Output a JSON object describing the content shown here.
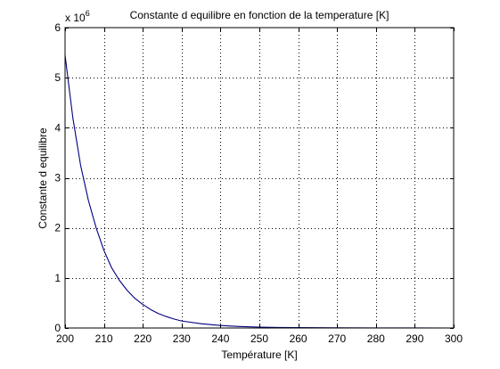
{
  "chart_data": {
    "type": "line",
    "title": "Constante d equilibre en fonction de la temperature [K]",
    "xlabel": "Température [K]",
    "ylabel": "Constante d equilibre",
    "y_multiplier_base": "x 10",
    "y_multiplier_exponent": "6",
    "xlim": [
      200,
      300
    ],
    "ylim": [
      0,
      6
    ],
    "x_ticks": [
      200,
      210,
      220,
      230,
      240,
      250,
      260,
      270,
      280,
      290,
      300
    ],
    "y_ticks": [
      0,
      1,
      2,
      3,
      4,
      5,
      6
    ],
    "grid": true,
    "line_color": "#00007f",
    "series": [
      {
        "x": [
          200,
          202,
          204,
          206,
          208,
          210,
          212,
          214,
          216,
          218,
          220,
          222,
          224,
          226,
          228,
          230,
          235,
          240,
          245,
          250,
          255,
          260,
          270,
          280,
          290,
          300
        ],
        "y": [
          5.45,
          4.2,
          3.25,
          2.55,
          2.0,
          1.55,
          1.2,
          0.95,
          0.75,
          0.59,
          0.47,
          0.37,
          0.29,
          0.23,
          0.18,
          0.14,
          0.085,
          0.05,
          0.03,
          0.018,
          0.011,
          0.007,
          0.003,
          0.0012,
          0.0005,
          0.0002
        ]
      }
    ]
  }
}
